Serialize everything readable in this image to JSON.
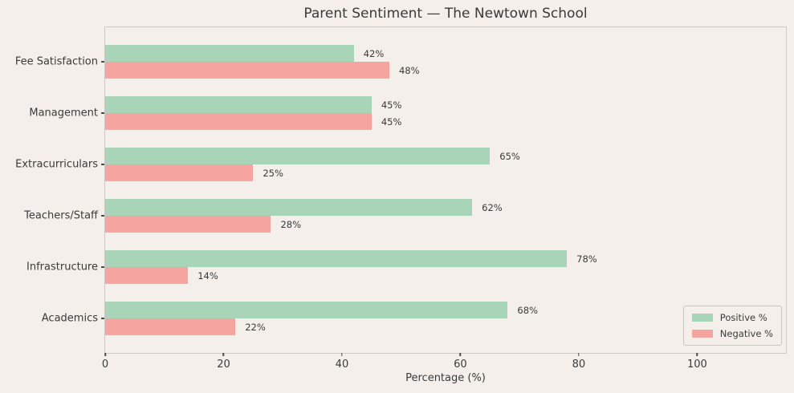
{
  "title": "Parent Sentiment — The Newtown School",
  "chart_data": {
    "type": "bar",
    "orientation": "horizontal",
    "title": "Parent Sentiment — The Newtown School",
    "xlabel": "Percentage (%)",
    "ylabel": "",
    "categories_top_to_bottom": [
      "Fee Satisfaction",
      "Management",
      "Extracurriculars",
      "Teachers/Staff",
      "Infrastructure",
      "Academics"
    ],
    "series": [
      {
        "name": "Positive %",
        "color": "#a8d4b8",
        "values": [
          42,
          45,
          65,
          62,
          78,
          68
        ],
        "labels": [
          "42%",
          "45%",
          "65%",
          "62%",
          "78%",
          "68%"
        ]
      },
      {
        "name": "Negative %",
        "color": "#f5a49f",
        "values": [
          48,
          45,
          25,
          28,
          14,
          22
        ],
        "labels": [
          "48%",
          "45%",
          "25%",
          "28%",
          "14%",
          "22%"
        ]
      }
    ],
    "xlim": [
      0,
      115
    ],
    "x_ticks": [
      "0",
      "20",
      "40",
      "60",
      "80",
      "100"
    ],
    "grid": false,
    "legend": {
      "position": "lower right",
      "entries": [
        "Positive %",
        "Negative %"
      ]
    }
  },
  "colors": {
    "background": "#f4efea",
    "positive": "#a8d4b8",
    "negative": "#f5a49f",
    "text": "#3a3a3a",
    "spine": "#cdc9c3"
  }
}
